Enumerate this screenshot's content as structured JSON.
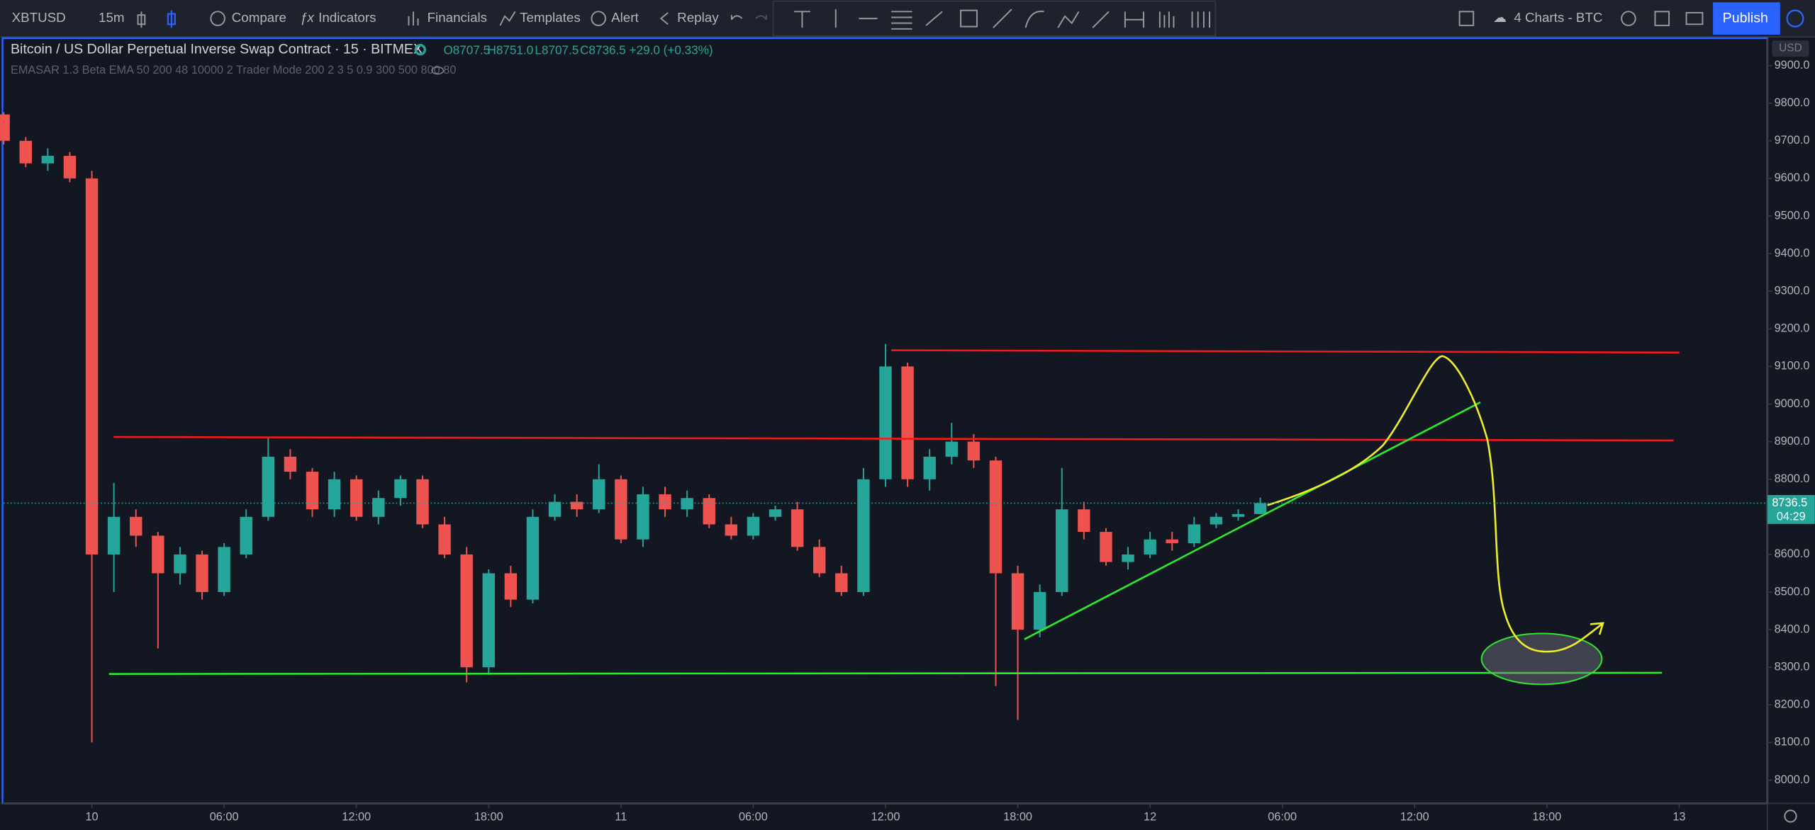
{
  "toolbar": {
    "symbol": "XBTUSD",
    "interval": "15m",
    "buttons": [
      "Compare",
      "Indicators",
      "Financials",
      "Templates",
      "Alert",
      "Replay"
    ],
    "layout": "4 Charts - BTC",
    "publish": "Publish"
  },
  "legend": {
    "title": "Bitcoin / US Dollar Perpetual Inverse Swap Contract · 15 · BITMEX",
    "open": "O8707.5",
    "high": "H8751.0",
    "low": "L8707.5",
    "close": "C8736.5 +29.0 (+0.33%)",
    "indicator": "EMASAR 1.3 Beta EMA 50 200 48 10000 2 Trader Mode 200 2 3 5 0.9 300 500 800 80"
  },
  "chart_data": {
    "type": "candlestick",
    "currency": "USD",
    "up_color": "#26a69a",
    "down_color": "#ef5350",
    "x": [
      -4,
      -3,
      -2,
      -1,
      0,
      1,
      2,
      3,
      4,
      5,
      6,
      7,
      8,
      9,
      10,
      11,
      12,
      13,
      14,
      15,
      16,
      17,
      18,
      19,
      20,
      21,
      22,
      23,
      24,
      25,
      26,
      27,
      28,
      29,
      30,
      31,
      32,
      33,
      34,
      35,
      36,
      37,
      38,
      39,
      40,
      41,
      42,
      43,
      44,
      45,
      46,
      47,
      48,
      49,
      50,
      51,
      52,
      53
    ],
    "open": [
      9770,
      9700,
      9640,
      9660,
      9600,
      8600,
      8700,
      8650,
      8550,
      8600,
      8500,
      8600,
      8700,
      8860,
      8820,
      8720,
      8800,
      8700,
      8750,
      8800,
      8680,
      8600,
      8300,
      8550,
      8480,
      8700,
      8740,
      8720,
      8800,
      8640,
      8760,
      8720,
      8750,
      8680,
      8650,
      8700,
      8720,
      8620,
      8550,
      8500,
      8800,
      9100,
      8800,
      8860,
      8900,
      8850,
      8550,
      8400,
      8500,
      8720,
      8660,
      8580,
      8600,
      8640,
      8630,
      8680,
      8700,
      8707.5
    ],
    "high": [
      9776,
      9710,
      9680,
      9670,
      9620,
      8790,
      8720,
      8660,
      8620,
      8610,
      8630,
      8720,
      8910,
      8880,
      8830,
      8820,
      8810,
      8770,
      8810,
      8810,
      8700,
      8620,
      8560,
      8570,
      8720,
      8760,
      8760,
      8840,
      8810,
      8780,
      8780,
      8770,
      8760,
      8700,
      8710,
      8730,
      8740,
      8640,
      8570,
      8830,
      9160,
      9110,
      8880,
      8950,
      8920,
      8860,
      8570,
      8520,
      8830,
      8740,
      8670,
      8620,
      8660,
      8660,
      8700,
      8710,
      8720,
      8751
    ],
    "low": [
      9690,
      9630,
      9620,
      9590,
      8100,
      8500,
      8620,
      8350,
      8520,
      8480,
      8490,
      8590,
      8690,
      8800,
      8700,
      8700,
      8690,
      8680,
      8730,
      8670,
      8590,
      8260,
      8280,
      8460,
      8470,
      8690,
      8700,
      8710,
      8630,
      8620,
      8700,
      8700,
      8670,
      8640,
      8640,
      8690,
      8610,
      8540,
      8490,
      8490,
      8780,
      8780,
      8770,
      8840,
      8830,
      8250,
      8160,
      8380,
      8490,
      8640,
      8570,
      8560,
      8590,
      8610,
      8620,
      8670,
      8690,
      8707.5
    ],
    "close": [
      9700,
      9640,
      9660,
      9600,
      8600,
      8700,
      8650,
      8550,
      8600,
      8500,
      8620,
      8700,
      8860,
      8820,
      8720,
      8800,
      8700,
      8750,
      8800,
      8680,
      8600,
      8300,
      8550,
      8480,
      8700,
      8740,
      8720,
      8800,
      8640,
      8760,
      8720,
      8750,
      8680,
      8650,
      8700,
      8720,
      8620,
      8550,
      8500,
      8800,
      9100,
      8800,
      8860,
      8900,
      8850,
      8550,
      8400,
      8500,
      8720,
      8660,
      8580,
      8600,
      8640,
      8630,
      8680,
      8700,
      8707.5,
      8736.5
    ],
    "xlim": [
      -4,
      76
    ],
    "xticks": [
      {
        "value": 0,
        "label": "10"
      },
      {
        "value": 6,
        "label": "06:00"
      },
      {
        "value": 12,
        "label": "12:00"
      },
      {
        "value": 18,
        "label": "18:00"
      },
      {
        "value": 24,
        "label": "11"
      },
      {
        "value": 30,
        "label": "06:00"
      },
      {
        "value": 36,
        "label": "12:00"
      },
      {
        "value": 42,
        "label": "18:00"
      },
      {
        "value": 48,
        "label": "12"
      },
      {
        "value": 54,
        "label": "06:00"
      },
      {
        "value": 60,
        "label": "12:00"
      },
      {
        "value": 66,
        "label": "18:00"
      },
      {
        "value": 72,
        "label": "13"
      }
    ],
    "ylim": [
      7938,
      9973
    ],
    "yticks": [
      {
        "value": 8000,
        "label": "8000.0"
      },
      {
        "value": 8100,
        "label": "8100.0"
      },
      {
        "value": 8200,
        "label": "8200.0"
      },
      {
        "value": 8300,
        "label": "8300.0"
      },
      {
        "value": 8400,
        "label": "8400.0"
      },
      {
        "value": 8500,
        "label": "8500.0"
      },
      {
        "value": 8600,
        "label": "8600.0"
      },
      {
        "value": 8700,
        "label": "8700.0"
      },
      {
        "value": 8800,
        "label": "8800.0"
      },
      {
        "value": 8900,
        "label": "8900.0"
      },
      {
        "value": 9000,
        "label": "9000.0"
      },
      {
        "value": 9100,
        "label": "9100.0"
      },
      {
        "value": 9200,
        "label": "9200.0"
      },
      {
        "value": 9300,
        "label": "9300.0"
      },
      {
        "value": 9400,
        "label": "9400.0"
      },
      {
        "value": 9500,
        "label": "9500.0"
      },
      {
        "value": 9600,
        "label": "9600.0"
      },
      {
        "value": 9700,
        "label": "9700.0"
      },
      {
        "value": 9800,
        "label": "9800.0"
      },
      {
        "value": 9900,
        "label": "9900.0"
      }
    ],
    "last_price": 8736.5,
    "countdown": "04:29"
  }
}
